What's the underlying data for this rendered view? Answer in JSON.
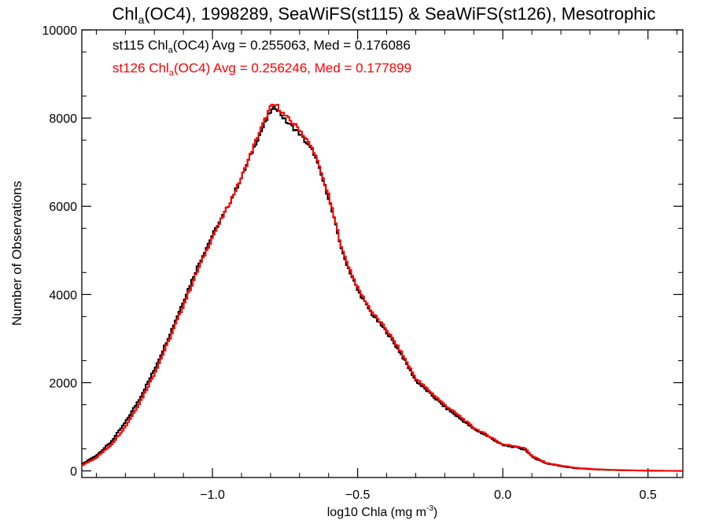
{
  "chart_data": {
    "type": "line",
    "title": {
      "before_sub": "Chl",
      "sub": "a",
      "after_sub": "(OC4), 1998289, SeaWiFS(st115) & SeaWiFS(st126), Mesotrophic"
    },
    "xlabel": {
      "main": "log10 Chla (mg m",
      "sup": "-3",
      "close": ")"
    },
    "ylabel": "Number of Observations",
    "xlim": [
      -1.45,
      0.62
    ],
    "ylim": [
      -150,
      10000
    ],
    "x_ticks": [
      {
        "value": -1.0,
        "label": "−1.0"
      },
      {
        "value": -0.5,
        "label": "−0.5"
      },
      {
        "value": 0.0,
        "label": "0.0"
      },
      {
        "value": 0.5,
        "label": "0.5"
      }
    ],
    "y_ticks": [
      {
        "value": 0,
        "label": "0"
      },
      {
        "value": 2000,
        "label": "2000"
      },
      {
        "value": 4000,
        "label": "4000"
      },
      {
        "value": 6000,
        "label": "6000"
      },
      {
        "value": 8000,
        "label": "8000"
      },
      {
        "value": 10000,
        "label": "10000"
      }
    ],
    "grid": false,
    "legend_position": "top-left",
    "series": [
      {
        "name": "st115",
        "color": "#000000",
        "annotation": {
          "prefix": "st115 Chl",
          "sub": "a",
          "suffix": "(OC4) Avg = 0.255063, Med = 0.176086"
        },
        "x": [
          -1.45,
          -1.4,
          -1.35,
          -1.3,
          -1.25,
          -1.2,
          -1.15,
          -1.1,
          -1.05,
          -1.0,
          -0.95,
          -0.9,
          -0.85,
          -0.8,
          -0.78,
          -0.75,
          -0.7,
          -0.65,
          -0.6,
          -0.55,
          -0.5,
          -0.45,
          -0.4,
          -0.35,
          -0.3,
          -0.25,
          -0.2,
          -0.15,
          -0.1,
          -0.05,
          0.0,
          0.05,
          0.08,
          0.1,
          0.15,
          0.2,
          0.25,
          0.3,
          0.35,
          0.4,
          0.45,
          0.5,
          0.55,
          0.6,
          0.62
        ],
        "y": [
          150,
          350,
          650,
          1100,
          1650,
          2300,
          3050,
          3850,
          4650,
          5350,
          5950,
          6650,
          7450,
          8150,
          8250,
          7950,
          7650,
          7200,
          6200,
          4900,
          4100,
          3550,
          3150,
          2650,
          2050,
          1750,
          1450,
          1200,
          950,
          780,
          580,
          530,
          470,
          320,
          170,
          110,
          60,
          40,
          25,
          15,
          10,
          5,
          2,
          0,
          0
        ]
      },
      {
        "name": "st126",
        "color": "#ff0000",
        "annotation": {
          "prefix": "st126 Chl",
          "sub": "a",
          "suffix": "(OC4) Avg = 0.256246, Med = 0.177899"
        },
        "x": [
          -1.45,
          -1.4,
          -1.35,
          -1.3,
          -1.25,
          -1.2,
          -1.15,
          -1.1,
          -1.05,
          -1.0,
          -0.95,
          -0.9,
          -0.85,
          -0.8,
          -0.78,
          -0.75,
          -0.7,
          -0.65,
          -0.6,
          -0.55,
          -0.5,
          -0.45,
          -0.4,
          -0.35,
          -0.3,
          -0.25,
          -0.2,
          -0.15,
          -0.1,
          -0.05,
          0.0,
          0.05,
          0.08,
          0.1,
          0.15,
          0.2,
          0.25,
          0.3,
          0.35,
          0.4,
          0.45,
          0.5,
          0.55,
          0.6,
          0.62
        ],
        "y": [
          120,
          300,
          580,
          1000,
          1550,
          2200,
          2950,
          3750,
          4550,
          5300,
          5950,
          6650,
          7500,
          8250,
          8300,
          8050,
          7750,
          7250,
          6250,
          4950,
          4150,
          3600,
          3200,
          2700,
          2100,
          1800,
          1500,
          1250,
          980,
          800,
          600,
          560,
          500,
          340,
          180,
          120,
          70,
          45,
          28,
          18,
          12,
          6,
          3,
          1,
          0
        ]
      }
    ]
  }
}
